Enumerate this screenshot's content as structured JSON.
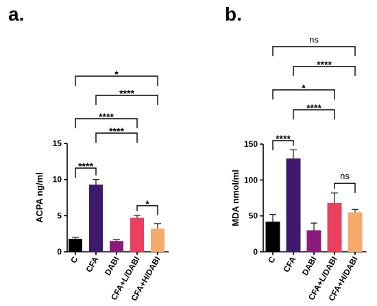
{
  "chart_data": [
    {
      "panel": "a.",
      "type": "bar",
      "ylabel": "ACPA ng/ml",
      "ylim": [
        0,
        15
      ],
      "yticks": [
        0,
        5,
        10,
        15
      ],
      "categories": [
        "C",
        "CFA",
        "DABI",
        "CFA+L/DABI",
        "CFA+H/DABI"
      ],
      "values": [
        1.8,
        9.3,
        1.5,
        4.7,
        3.2
      ],
      "errors": [
        0.2,
        0.7,
        0.2,
        0.35,
        0.7
      ],
      "colors": [
        "#000000",
        "#3d1a6e",
        "#8b1a7a",
        "#e8405e",
        "#f5a96b"
      ],
      "comparisons": [
        {
          "from": 0,
          "to": 1,
          "label": "****"
        },
        {
          "from": 3,
          "to": 4,
          "label": "*"
        },
        {
          "from": 1,
          "to": 3,
          "label": "****"
        },
        {
          "from": 0,
          "to": 3,
          "label": "****"
        },
        {
          "from": 1,
          "to": 4,
          "label": "****"
        },
        {
          "from": 0,
          "to": 4,
          "label": "*"
        }
      ]
    },
    {
      "panel": "b.",
      "type": "bar",
      "ylabel": "MDA nmol/ml",
      "ylim": [
        0,
        150
      ],
      "yticks": [
        0,
        50,
        100,
        150
      ],
      "categories": [
        "C",
        "CFA",
        "DABI",
        "CFA+L/DABI",
        "CFA+H/DABI"
      ],
      "values": [
        42,
        130,
        30,
        68,
        55
      ],
      "errors": [
        10,
        12,
        10,
        14,
        4
      ],
      "colors": [
        "#000000",
        "#3d1a6e",
        "#8b1a7a",
        "#e8405e",
        "#f5a96b"
      ],
      "comparisons": [
        {
          "from": 0,
          "to": 1,
          "label": "****"
        },
        {
          "from": 3,
          "to": 4,
          "label": "ns"
        },
        {
          "from": 1,
          "to": 3,
          "label": "****"
        },
        {
          "from": 0,
          "to": 3,
          "label": "*"
        },
        {
          "from": 1,
          "to": 4,
          "label": "****"
        },
        {
          "from": 0,
          "to": 4,
          "label": "ns"
        }
      ]
    }
  ]
}
